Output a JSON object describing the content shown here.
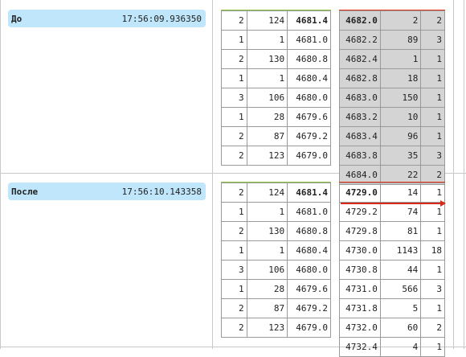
{
  "snapshots": [
    {
      "label": "До",
      "time": "17:56:09.936350",
      "bids": [
        [
          "2",
          "124",
          "4681.4"
        ],
        [
          "1",
          "1",
          "4681.0"
        ],
        [
          "2",
          "130",
          "4680.8"
        ],
        [
          "1",
          "1",
          "4680.4"
        ],
        [
          "3",
          "106",
          "4680.0"
        ],
        [
          "1",
          "28",
          "4679.6"
        ],
        [
          "2",
          "87",
          "4679.2"
        ],
        [
          "2",
          "123",
          "4679.0"
        ]
      ],
      "asks": [
        [
          "4682.0",
          "2",
          "2"
        ],
        [
          "4682.2",
          "89",
          "3"
        ],
        [
          "4682.4",
          "1",
          "1"
        ],
        [
          "4682.8",
          "18",
          "1"
        ],
        [
          "4683.0",
          "150",
          "1"
        ],
        [
          "4683.2",
          "10",
          "1"
        ],
        [
          "4683.4",
          "96",
          "1"
        ],
        [
          "4683.8",
          "35",
          "3"
        ],
        [
          "4684.0",
          "22",
          "2"
        ]
      ]
    },
    {
      "label": "После",
      "time": "17:56:10.143358",
      "bids": [
        [
          "2",
          "124",
          "4681.4"
        ],
        [
          "1",
          "1",
          "4681.0"
        ],
        [
          "2",
          "130",
          "4680.8"
        ],
        [
          "1",
          "1",
          "4680.4"
        ],
        [
          "3",
          "106",
          "4680.0"
        ],
        [
          "1",
          "28",
          "4679.6"
        ],
        [
          "2",
          "87",
          "4679.2"
        ],
        [
          "2",
          "123",
          "4679.0"
        ]
      ],
      "asks": [
        [
          "4729.0",
          "14",
          "1"
        ],
        [
          "4729.2",
          "74",
          "1"
        ],
        [
          "4729.8",
          "81",
          "1"
        ],
        [
          "4730.0",
          "1143",
          "18"
        ],
        [
          "4730.8",
          "44",
          "1"
        ],
        [
          "4731.0",
          "566",
          "3"
        ],
        [
          "4731.8",
          "5",
          "1"
        ],
        [
          "4732.0",
          "60",
          "2"
        ],
        [
          "4732.4",
          "4",
          "1"
        ]
      ]
    }
  ],
  "colors": {
    "label_bg": "#bfe6fb",
    "bid_accent": "#8cc63f",
    "ask_accent": "#e8321e",
    "stale_ask_bg": "#d4d4d4",
    "arrow": "#d62a1a"
  }
}
